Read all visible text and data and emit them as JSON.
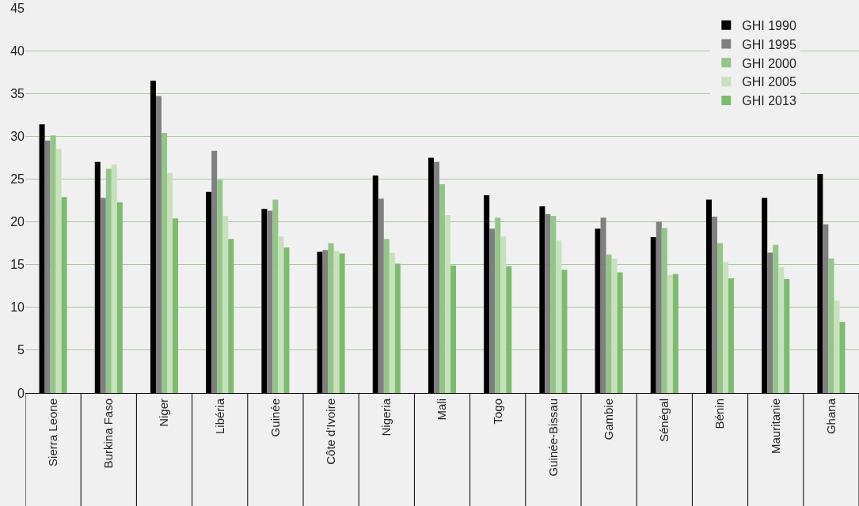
{
  "chart_data": {
    "type": "bar",
    "categories": [
      "Sierra Leone",
      "Burkina Faso",
      "Niger",
      "Libéria",
      "Guinée",
      "Côte d'Ivoire",
      "Nigeria",
      "Mali",
      "Togo",
      "Guinée-Bissau",
      "Gambie",
      "Sénégal",
      "Bénin",
      "Mauritanie",
      "Ghana"
    ],
    "series": [
      {
        "name": "GHI 1990",
        "color": "#000000",
        "values": [
          31.4,
          27.0,
          36.5,
          23.5,
          21.5,
          16.5,
          25.4,
          27.5,
          23.1,
          21.8,
          19.2,
          18.2,
          22.6,
          22.8,
          25.6
        ]
      },
      {
        "name": "GHI 1995",
        "color": "#808080",
        "values": [
          29.5,
          22.8,
          34.7,
          28.3,
          21.3,
          16.7,
          22.7,
          27.0,
          19.2,
          20.9,
          20.5,
          20.0,
          20.6,
          16.4,
          19.7
        ]
      },
      {
        "name": "GHI 2000",
        "color": "#94c588",
        "values": [
          30.1,
          26.2,
          30.4,
          24.9,
          22.6,
          17.5,
          18.0,
          24.4,
          20.5,
          20.7,
          16.2,
          19.3,
          17.5,
          17.3,
          15.7
        ]
      },
      {
        "name": "GHI 2005",
        "color": "#c7e1bd",
        "values": [
          28.5,
          26.7,
          25.7,
          20.7,
          18.3,
          16.6,
          16.4,
          20.8,
          18.3,
          17.8,
          15.7,
          13.8,
          15.3,
          14.7,
          10.8
        ]
      },
      {
        "name": "GHI 2013",
        "color": "#7dbc6f",
        "values": [
          22.9,
          22.3,
          20.4,
          18.0,
          17.0,
          16.3,
          15.1,
          14.9,
          14.8,
          14.4,
          14.1,
          13.9,
          13.4,
          13.3,
          8.3
        ]
      }
    ],
    "ylim": [
      0,
      45
    ],
    "yticks": [
      0,
      5,
      10,
      15,
      20,
      25,
      30,
      35,
      40,
      45
    ],
    "grid": "y",
    "legend": "top right"
  }
}
